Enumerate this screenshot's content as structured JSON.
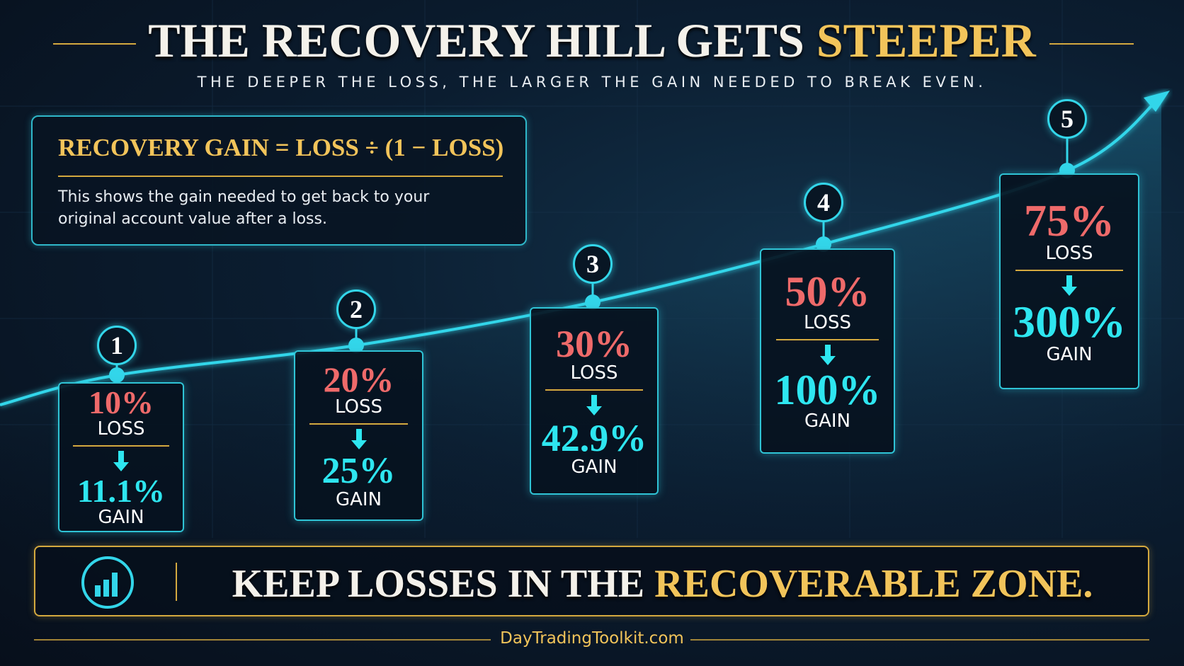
{
  "header": {
    "title_main": "THE RECOVERY HILL GETS",
    "title_accent": "STEEPER",
    "subtitle": "THE DEEPER THE LOSS, THE LARGER THE GAIN NEEDED TO BREAK EVEN."
  },
  "formula": {
    "title": "RECOVERY GAIN = LOSS ÷ (1 − LOSS)",
    "text": "This shows the gain needed to get back to your original account value after a loss."
  },
  "steps": [
    {
      "number": "1",
      "loss": "10%",
      "loss_label": "LOSS",
      "gain": "11.1%",
      "gain_label": "GAIN"
    },
    {
      "number": "2",
      "loss": "20%",
      "loss_label": "LOSS",
      "gain": "25%",
      "gain_label": "GAIN"
    },
    {
      "number": "3",
      "loss": "30%",
      "loss_label": "LOSS",
      "gain": "42.9%",
      "gain_label": "GAIN"
    },
    {
      "number": "4",
      "loss": "50%",
      "loss_label": "LOSS",
      "gain": "100%",
      "gain_label": "GAIN"
    },
    {
      "number": "5",
      "loss": "75%",
      "loss_label": "LOSS",
      "gain": "300%",
      "gain_label": "GAIN"
    }
  ],
  "banner": {
    "text_main": "KEEP LOSSES IN THE",
    "text_accent": "RECOVERABLE ZONE."
  },
  "footer": "DayTradingToolkit.com"
}
